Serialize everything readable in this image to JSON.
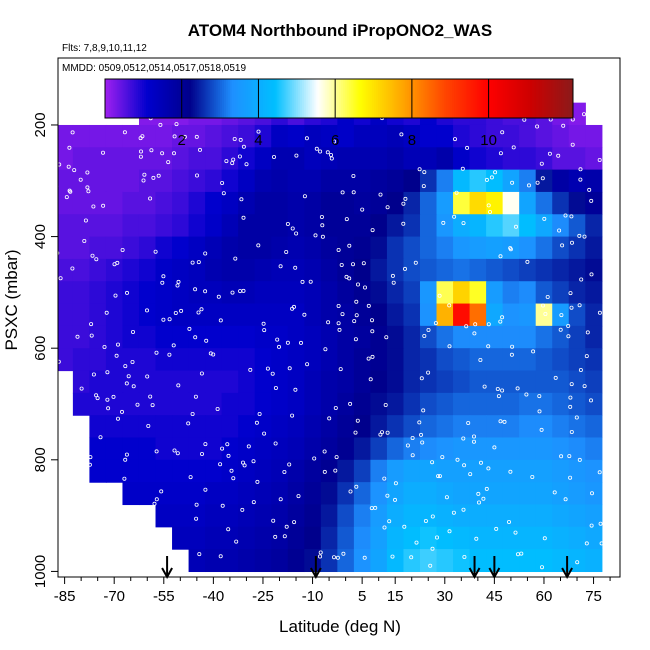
{
  "chart_data": {
    "type": "heatmap",
    "title": "ATOM4 Northbound iPropONO2_WAS",
    "annotations": [
      "Flts: 7,8,9,10,11,12",
      "MMDD: 0509,0512,0514,0517,0518,0519"
    ],
    "xlabel": "Latitude (deg N)",
    "ylabel": "PSXC (mbar)",
    "xlim": [
      -87,
      83
    ],
    "ylim": [
      1010,
      80
    ],
    "x_ticks": [
      -85,
      -70,
      -55,
      -40,
      -25,
      -10,
      5,
      15,
      30,
      45,
      60,
      75
    ],
    "x_tick_labels": [
      "-85",
      "-70",
      "-55",
      "-40",
      "-25",
      "-10",
      "5",
      "15",
      "30",
      "45",
      "60",
      "75"
    ],
    "y_ticks": [
      200,
      400,
      600,
      800,
      1000
    ],
    "y_tick_labels": [
      "200",
      "400",
      "600",
      "800",
      "1000"
    ],
    "colorbar": {
      "range": [
        0,
        12.2
      ],
      "ticks": [
        2,
        4,
        6,
        8,
        10
      ],
      "tick_labels": [
        "2",
        "4",
        "6",
        "8",
        "10"
      ],
      "colors": [
        "#a020f0",
        "#0000cd",
        "#00008b",
        "#1e90ff",
        "#00bfff",
        "#ffffff",
        "#ffff00",
        "#ffa500",
        "#ff4500",
        "#ff0000",
        "#cd0000",
        "#8b1a1a"
      ]
    },
    "vertical_profile_markers_latitude": [
      -54,
      -9,
      39,
      45,
      67
    ],
    "pressure_levels": [
      180,
      220,
      260,
      300,
      340,
      380,
      420,
      460,
      500,
      540,
      580,
      620,
      660,
      700,
      740,
      780,
      820,
      860,
      900,
      940,
      980
    ],
    "latitudes": [
      -85,
      -80,
      -75,
      -70,
      -65,
      -60,
      -55,
      -50,
      -45,
      -40,
      -35,
      -30,
      -25,
      -20,
      -15,
      -10,
      -5,
      0,
      5,
      10,
      15,
      20,
      25,
      30,
      35,
      40,
      45,
      50,
      55,
      60,
      65,
      70,
      75,
      80
    ],
    "values": [
      [
        null,
        null,
        null,
        null,
        null,
        0.2,
        0.2,
        0.2,
        0.3,
        0.3,
        0.4,
        0.5,
        0.6,
        0.8,
        0.6,
        0.8,
        0.9,
        1.2,
        1.0,
        1.3,
        1.0,
        0.9,
        1.1,
        0.9,
        0.8,
        0.8,
        0.7,
        0.6,
        0.6,
        0.5,
        0.3,
        0.2,
        null,
        null
      ],
      [
        0.3,
        0.3,
        0.3,
        0.3,
        0.3,
        0.3,
        0.3,
        0.4,
        0.4,
        0.5,
        0.6,
        0.7,
        0.9,
        1.3,
        1.2,
        1.4,
        1.3,
        1.2,
        1.4,
        1.4,
        1.5,
        1.3,
        1.1,
        1.1,
        0.9,
        0.8,
        0.7,
        0.7,
        0.6,
        0.5,
        0.4,
        0.3,
        0.3,
        null
      ],
      [
        0.3,
        0.4,
        0.4,
        0.4,
        0.4,
        0.4,
        0.4,
        0.5,
        0.6,
        0.6,
        0.8,
        1.0,
        1.3,
        1.6,
        1.6,
        1.4,
        1.5,
        1.6,
        1.6,
        1.6,
        1.7,
        1.5,
        1.5,
        1.7,
        1.2,
        1.0,
        0.9,
        0.8,
        0.8,
        0.7,
        0.5,
        0.5,
        0.4,
        null
      ],
      [
        0.4,
        0.4,
        0.4,
        0.4,
        0.4,
        0.5,
        0.5,
        0.6,
        0.7,
        0.8,
        1.0,
        1.3,
        1.6,
        1.7,
        1.6,
        1.6,
        1.8,
        1.8,
        1.8,
        1.9,
        2.0,
        2.2,
        2.6,
        3.2,
        4.3,
        4.6,
        4.4,
        3.8,
        3.2,
        2.4,
        1.8,
        1.6,
        1.7,
        null
      ],
      [
        0.4,
        0.4,
        0.4,
        0.4,
        0.5,
        0.5,
        0.6,
        0.7,
        0.9,
        1.1,
        1.3,
        1.6,
        1.8,
        1.8,
        1.7,
        1.8,
        2.0,
        2.0,
        1.9,
        2.0,
        2.2,
        2.5,
        3.0,
        3.6,
        6.4,
        7.1,
        6.8,
        5.6,
        3.8,
        3.1,
        2.6,
        2.3,
        2.0,
        null
      ],
      [
        0.5,
        0.5,
        0.5,
        0.5,
        0.6,
        0.6,
        0.7,
        0.8,
        1.0,
        1.2,
        1.5,
        1.8,
        1.8,
        1.8,
        1.7,
        1.8,
        2.0,
        2.0,
        2.0,
        2.2,
        2.4,
        2.6,
        3.0,
        3.5,
        4.0,
        4.2,
        4.6,
        4.8,
        4.4,
        3.9,
        3.3,
        2.9,
        2.5,
        null
      ],
      [
        0.5,
        0.5,
        0.6,
        0.6,
        0.7,
        0.8,
        1.0,
        1.1,
        1.3,
        1.5,
        1.7,
        1.8,
        1.8,
        1.7,
        1.6,
        1.7,
        1.9,
        2.0,
        2.1,
        2.3,
        2.6,
        2.8,
        3.0,
        3.2,
        3.5,
        3.6,
        3.7,
        3.6,
        3.4,
        3.1,
        2.8,
        2.6,
        2.4,
        null
      ],
      [
        0.6,
        0.6,
        0.7,
        0.8,
        0.9,
        1.0,
        1.2,
        1.3,
        1.4,
        1.6,
        1.7,
        1.7,
        1.6,
        1.5,
        1.5,
        1.6,
        1.8,
        2.0,
        2.2,
        2.4,
        2.6,
        2.8,
        2.9,
        3.0,
        3.1,
        3.0,
        2.9,
        2.8,
        2.7,
        2.6,
        2.5,
        2.4,
        2.3,
        null
      ],
      [
        0.7,
        0.7,
        0.8,
        0.9,
        1.0,
        1.1,
        1.2,
        1.3,
        1.4,
        1.4,
        1.5,
        1.5,
        1.4,
        1.4,
        1.4,
        1.5,
        1.7,
        1.9,
        2.1,
        2.3,
        2.5,
        2.7,
        3.5,
        6.3,
        7.2,
        6.5,
        3.6,
        3.2,
        3.3,
        2.9,
        2.7,
        2.5,
        2.4,
        null
      ],
      [
        0.7,
        0.7,
        0.8,
        0.9,
        1.0,
        1.1,
        1.2,
        1.3,
        1.3,
        1.3,
        1.3,
        1.3,
        1.3,
        1.3,
        1.3,
        1.5,
        1.7,
        1.8,
        2.0,
        2.2,
        2.4,
        2.6,
        3.4,
        7.6,
        9.8,
        8.4,
        3.9,
        3.4,
        3.5,
        6.0,
        3.6,
        2.8,
        2.5,
        null
      ],
      [
        0.7,
        0.7,
        0.8,
        0.9,
        1.0,
        1.0,
        1.1,
        1.1,
        1.1,
        1.1,
        1.1,
        1.1,
        1.2,
        1.2,
        1.3,
        1.4,
        1.6,
        1.8,
        1.9,
        2.1,
        2.3,
        2.5,
        2.8,
        3.1,
        3.3,
        3.3,
        3.3,
        3.3,
        3.3,
        3.1,
        2.9,
        2.7,
        2.5,
        null
      ],
      [
        0.7,
        0.8,
        0.8,
        0.9,
        0.9,
        0.9,
        1.0,
        1.0,
        1.0,
        1.0,
        1.0,
        1.0,
        1.1,
        1.2,
        1.3,
        1.4,
        1.6,
        1.8,
        2.0,
        2.1,
        2.3,
        2.5,
        2.6,
        2.8,
        2.9,
        3.0,
        3.0,
        3.0,
        3.0,
        2.9,
        2.8,
        2.7,
        2.6,
        null
      ],
      [
        null,
        0.8,
        0.9,
        0.9,
        0.9,
        0.9,
        0.9,
        0.9,
        0.9,
        0.9,
        0.9,
        1.0,
        1.1,
        1.2,
        1.3,
        1.5,
        1.7,
        1.8,
        2.0,
        2.2,
        2.3,
        2.5,
        2.6,
        2.7,
        2.8,
        2.9,
        2.9,
        2.9,
        2.9,
        2.9,
        2.9,
        2.8,
        2.7,
        null
      ],
      [
        null,
        0.9,
        0.9,
        0.9,
        0.9,
        0.9,
        0.9,
        0.9,
        0.9,
        0.9,
        1.0,
        1.0,
        1.1,
        1.2,
        1.3,
        1.5,
        1.7,
        1.9,
        2.1,
        2.3,
        2.4,
        2.6,
        2.8,
        2.9,
        3.0,
        3.0,
        3.0,
        3.0,
        3.1,
        3.1,
        3.0,
        2.9,
        2.8,
        null
      ],
      [
        null,
        null,
        1.0,
        1.0,
        1.0,
        1.0,
        1.0,
        1.0,
        1.0,
        1.0,
        1.0,
        1.1,
        1.2,
        1.3,
        1.4,
        1.6,
        1.8,
        2.0,
        2.2,
        2.4,
        2.6,
        2.8,
        3.0,
        3.1,
        3.2,
        3.2,
        3.2,
        3.2,
        3.3,
        3.3,
        3.2,
        3.1,
        3.0,
        null
      ],
      [
        null,
        null,
        1.1,
        1.1,
        1.1,
        1.1,
        1.0,
        1.0,
        1.0,
        1.0,
        1.1,
        1.2,
        1.3,
        1.4,
        1.5,
        1.7,
        1.9,
        2.1,
        2.4,
        2.7,
        3.0,
        3.2,
        3.3,
        3.4,
        3.5,
        3.5,
        3.5,
        3.5,
        3.5,
        3.5,
        3.4,
        3.3,
        3.2,
        null
      ],
      [
        null,
        null,
        1.1,
        1.1,
        1.1,
        1.1,
        1.1,
        1.1,
        1.1,
        1.1,
        1.2,
        1.3,
        1.4,
        1.5,
        1.7,
        1.9,
        2.1,
        2.4,
        2.7,
        3.2,
        3.6,
        3.8,
        3.8,
        3.7,
        3.7,
        3.7,
        3.7,
        3.7,
        3.7,
        3.7,
        3.6,
        3.5,
        3.4,
        null
      ],
      [
        null,
        null,
        null,
        null,
        1.2,
        1.2,
        1.2,
        1.2,
        1.2,
        1.3,
        1.3,
        1.4,
        1.5,
        1.6,
        1.8,
        2.0,
        2.3,
        2.6,
        3.0,
        3.4,
        3.8,
        4.0,
        4.0,
        3.9,
        3.8,
        3.8,
        3.8,
        3.8,
        3.8,
        3.8,
        3.7,
        3.6,
        3.5,
        null
      ],
      [
        null,
        null,
        null,
        null,
        null,
        null,
        1.3,
        1.3,
        1.3,
        1.4,
        1.4,
        1.5,
        1.6,
        1.7,
        1.9,
        2.1,
        2.4,
        2.8,
        3.2,
        3.6,
        4.0,
        4.2,
        4.2,
        4.1,
        4.0,
        4.0,
        4.0,
        4.0,
        4.0,
        4.0,
        3.9,
        3.8,
        3.7,
        null
      ],
      [
        null,
        null,
        null,
        null,
        null,
        null,
        null,
        1.4,
        1.4,
        1.5,
        1.5,
        1.6,
        1.7,
        1.8,
        2.0,
        2.2,
        2.5,
        2.9,
        3.3,
        3.7,
        4.2,
        4.4,
        4.5,
        4.4,
        4.3,
        4.2,
        4.2,
        4.2,
        4.2,
        4.2,
        4.1,
        4.0,
        3.9,
        null
      ],
      [
        null,
        null,
        null,
        null,
        null,
        null,
        null,
        null,
        1.5,
        1.6,
        1.6,
        1.7,
        1.8,
        1.9,
        2.1,
        2.3,
        2.6,
        3.0,
        3.4,
        3.8,
        4.3,
        4.6,
        4.7,
        4.6,
        4.5,
        4.4,
        4.4,
        4.4,
        4.4,
        4.4,
        4.3,
        4.2,
        4.1,
        null
      ]
    ]
  }
}
